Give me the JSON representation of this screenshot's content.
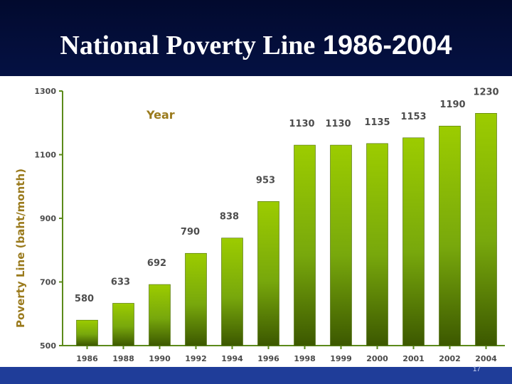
{
  "slide": {
    "title_part1": "National Poverty Line",
    "title_part2": "1986-2004",
    "page_number": "17"
  },
  "chart_data": {
    "type": "bar",
    "categories": [
      "1986",
      "1988",
      "1990",
      "1992",
      "1994",
      "1996",
      "1998",
      "1999",
      "2000",
      "2001",
      "2002",
      "2004"
    ],
    "values": [
      580,
      633,
      692,
      790,
      838,
      953,
      1130,
      1130,
      1135,
      1153,
      1190,
      1230
    ],
    "data_labels": [
      "580",
      "633",
      "692",
      "790",
      "838",
      "953",
      "1130",
      "1130",
      "1135",
      "1153",
      "1190",
      "1230"
    ],
    "ylabel": "Poverty Line   (baht/month)",
    "legend_label": "Year",
    "ylim": [
      500,
      1300
    ],
    "yticks": [
      500,
      700,
      900,
      1100,
      1300
    ],
    "grid": false,
    "legend_position": "top-left",
    "colors": {
      "bar_top": "#9ccc00",
      "bar_bottom": "#3c5800",
      "axis": "#5b8a1a",
      "axis_title": "#9a7a1c",
      "labels": "#4d4d4d"
    }
  }
}
